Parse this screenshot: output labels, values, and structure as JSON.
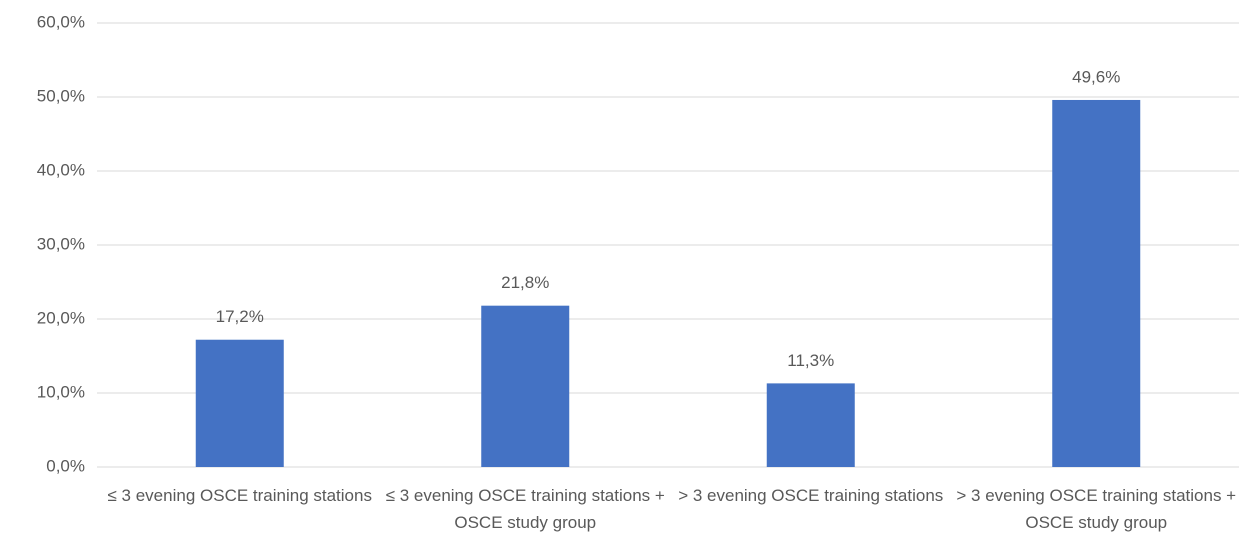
{
  "chart_data": {
    "type": "bar",
    "categories": [
      "≤ 3 evening OSCE training stations",
      "≤ 3 evening OSCE training stations + OSCE study group",
      "> 3 evening OSCE training stations",
      "> 3 evening OSCE training stations + OSCE study group"
    ],
    "values": [
      17.2,
      21.8,
      11.3,
      49.6
    ],
    "value_labels": [
      "17,2%",
      "21,8%",
      "11,3%",
      "49,6%"
    ],
    "color": "#4472c4",
    "ylim": [
      0,
      60
    ],
    "yticks": [
      {
        "value": 0,
        "label": "0,0%"
      },
      {
        "value": 10,
        "label": "10,0%"
      },
      {
        "value": 20,
        "label": "20,0%"
      },
      {
        "value": 30,
        "label": "30,0%"
      },
      {
        "value": 40,
        "label": "40,0%"
      },
      {
        "value": 50,
        "label": "50,0%"
      },
      {
        "value": 60,
        "label": "60,0%"
      }
    ],
    "grid": true
  }
}
